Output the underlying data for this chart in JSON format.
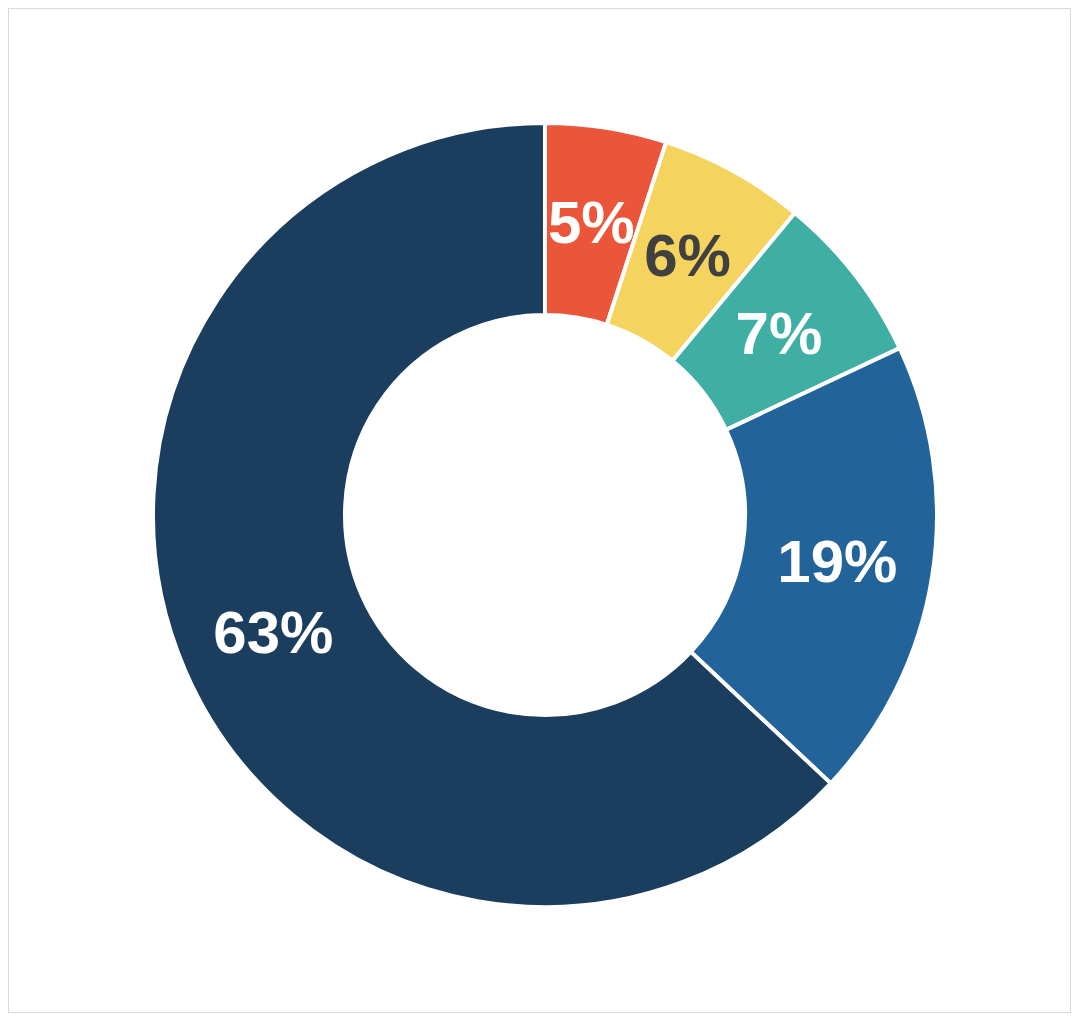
{
  "chart_data": {
    "type": "donut",
    "categories": [
      null,
      null,
      null,
      null,
      null
    ],
    "values": [
      5,
      6,
      7,
      19,
      63
    ],
    "colors": [
      "#eb563a",
      "#f4d35e",
      "#3faea3",
      "#226399",
      "#1b3e5f"
    ],
    "value_labels": [
      "5%",
      "6%",
      "7%",
      "19%",
      "63%"
    ]
  }
}
